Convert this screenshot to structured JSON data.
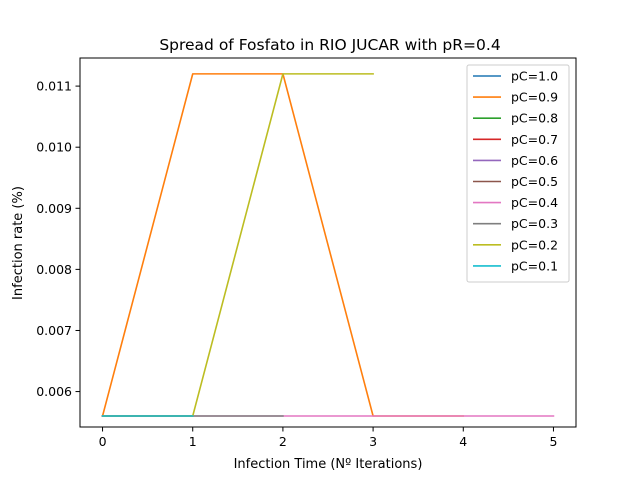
{
  "chart_data": {
    "type": "line",
    "title": "Spread of Fosfato in RIO JUCAR with pR=0.4",
    "xlabel": "Infection Time (Nº Iterations)",
    "ylabel": "Infection rate (%)",
    "xlim": [
      -0.25,
      5.25
    ],
    "ylim": [
      0.00542,
      0.01146
    ],
    "xticks": [
      0,
      1,
      2,
      3,
      4,
      5
    ],
    "yticks": [
      0.006,
      0.007,
      0.008,
      0.009,
      0.01,
      0.011
    ],
    "ytick_labels": [
      "0.006",
      "0.007",
      "0.008",
      "0.009",
      "0.010",
      "0.011"
    ],
    "grid": false,
    "legend_position": "top-right",
    "series": [
      {
        "name": "pC=1.0",
        "color": "#1f77b4",
        "x": [
          0,
          1
        ],
        "y": [
          0.0056,
          0.0056
        ]
      },
      {
        "name": "pC=0.9",
        "color": "#ff7f0e",
        "x": [
          0,
          1,
          2,
          3,
          4
        ],
        "y": [
          0.0056,
          0.0112,
          0.0112,
          0.0056,
          0.0056
        ]
      },
      {
        "name": "pC=0.8",
        "color": "#2ca02c",
        "x": [
          0,
          1
        ],
        "y": [
          0.0056,
          0.0056
        ]
      },
      {
        "name": "pC=0.7",
        "color": "#d62728",
        "x": [
          0,
          1
        ],
        "y": [
          0.0056,
          0.0056
        ]
      },
      {
        "name": "pC=0.6",
        "color": "#9467bd",
        "x": [
          0,
          1
        ],
        "y": [
          0.0056,
          0.0056
        ]
      },
      {
        "name": "pC=0.5",
        "color": "#8c564b",
        "x": [
          0,
          1
        ],
        "y": [
          0.0056,
          0.0056
        ]
      },
      {
        "name": "pC=0.4",
        "color": "#e377c2",
        "x": [
          0,
          1,
          2,
          3,
          4,
          5
        ],
        "y": [
          0.0056,
          0.0056,
          0.0056,
          0.0056,
          0.0056,
          0.0056
        ]
      },
      {
        "name": "pC=0.3",
        "color": "#7f7f7f",
        "x": [
          0,
          1,
          2
        ],
        "y": [
          0.0056,
          0.0056,
          0.0056
        ]
      },
      {
        "name": "pC=0.2",
        "color": "#bcbd22",
        "x": [
          0,
          1,
          2,
          3
        ],
        "y": [
          0.0056,
          0.0056,
          0.0112,
          0.0112
        ]
      },
      {
        "name": "pC=0.1",
        "color": "#17becf",
        "x": [
          0,
          1
        ],
        "y": [
          0.0056,
          0.0056
        ]
      }
    ]
  }
}
